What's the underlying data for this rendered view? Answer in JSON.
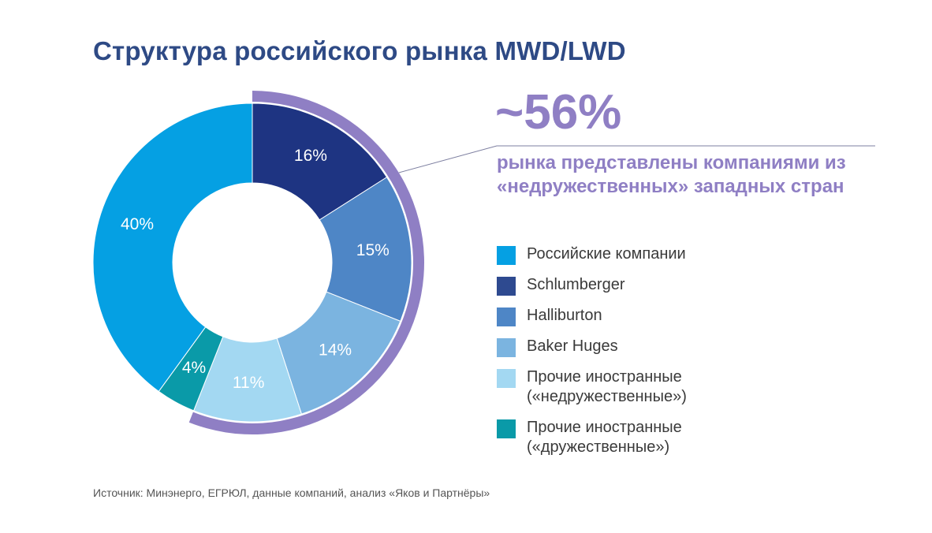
{
  "title": "Структура российского рынка MWD/LWD",
  "highlight": {
    "value": "~56%",
    "text": "рынка представлены компаниями из «недружественных» западных стран"
  },
  "chart_data": {
    "type": "pie",
    "title": "Структура российского рынка MWD/LWD",
    "donut": true,
    "slices": [
      {
        "label": "Schlumberger",
        "value": 16,
        "display": "16%",
        "color": "#1e3482",
        "unfriendly": true
      },
      {
        "label": "Halliburton",
        "value": 15,
        "display": "15%",
        "color": "#4e86c6",
        "unfriendly": true
      },
      {
        "label": "Baker Huges",
        "value": 14,
        "display": "14%",
        "color": "#7bb4e0",
        "unfriendly": true
      },
      {
        "label": "Прочие иностранные («недружественные»)",
        "value": 11,
        "display": "11%",
        "color": "#a3d8f2",
        "unfriendly": true
      },
      {
        "label": "Прочие иностранные («дружественные»)",
        "value": 4,
        "display": "4%",
        "color": "#0a9aa8",
        "unfriendly": false
      },
      {
        "label": "Российские компании",
        "value": 40,
        "display": "40%",
        "color": "#05a0e3",
        "unfriendly": false
      }
    ],
    "highlight_arc_color": "#8f7fc4",
    "label_color": "#ffffff"
  },
  "legend": [
    {
      "label_line1": "Российские компании",
      "label_line2": "",
      "color": "#05a0e3"
    },
    {
      "label_line1": "Schlumberger",
      "label_line2": "",
      "color": "#2e4a90"
    },
    {
      "label_line1": "Halliburton",
      "label_line2": "",
      "color": "#4e86c6"
    },
    {
      "label_line1": "Baker Huges",
      "label_line2": "",
      "color": "#7bb4e0"
    },
    {
      "label_line1": "Прочие иностранные",
      "label_line2": "(«недружественные»)",
      "color": "#a3d8f2"
    },
    {
      "label_line1": "Прочие иностранные",
      "label_line2": "(«дружественные»)",
      "color": "#0a9aa8"
    }
  ],
  "source": "Источник: Минэнерго, ЕГРЮЛ, данные компаний, анализ «Яков и Партнёры»"
}
